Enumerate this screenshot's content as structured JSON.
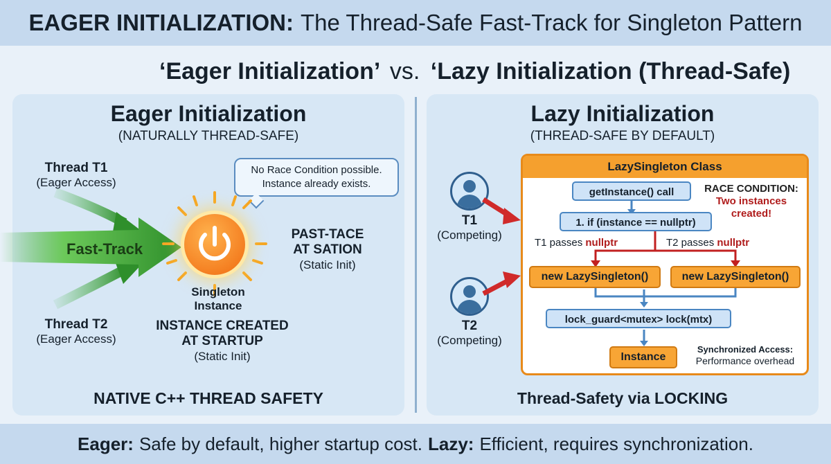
{
  "header": {
    "title_bold": "EAGER INITIALIZATION:",
    "title_rest": "The Thread-Safe Fast-Track for Singleton Pattern"
  },
  "subtitle": {
    "left": "‘Eager Initialization’",
    "vs": "vs.",
    "right": "‘Lazy Initialization (Thread-Safe)"
  },
  "left_panel": {
    "title": "Eager Initialization",
    "subtitle": "(NATURALLY THREAD-SAFE)",
    "thread1": {
      "name": "Thread T1",
      "note": "(Eager Access)"
    },
    "thread2": {
      "name": "Thread T2",
      "note": "(Eager Access)"
    },
    "fast_track": "Fast-Track",
    "bubble_line1": "No Race Condition possible.",
    "bubble_line2": "Instance already exists.",
    "singleton_line1": "Singleton",
    "singleton_line2": "Instance",
    "created_line1": "INSTANCE CREATED",
    "created_line2": "AT STARTUP",
    "created_note": "(Static Init)",
    "side_line1": "PAST-TACE",
    "side_line2": "AT SATION",
    "side_note": "(Static Init)",
    "footer": "NATIVE C++ THREAD SAFETY"
  },
  "right_panel": {
    "title": "Lazy Initialization",
    "subtitle": "(THREAD-SAFE BY DEFAULT)",
    "class_name": "LazySingleton Class",
    "get_instance": "getInstance() call",
    "if_check": "1. if (instance == nullptr)",
    "race_title": "RACE CONDITION:",
    "race_line1": "Two instances",
    "race_line2": "created!",
    "t1_passes": "T1 passes",
    "t2_passes": "T2 passes",
    "nullptr": "nullptr",
    "new_left": "new LazySingleton()",
    "new_right": "new LazySingleton()",
    "lock_guard": "lock_guard<mutex> lock(mtx)",
    "instance": "Instance",
    "sync_title": "Synchronized Access:",
    "sync_note": "Performance overhead",
    "t1": {
      "name": "T1",
      "note": "(Competing)"
    },
    "t2": {
      "name": "T2",
      "note": "(Competing)"
    },
    "footer": "Thread-Safety via LOCKING"
  },
  "footer": {
    "eager_label": "Eager:",
    "eager_text": "Safe by default, higher startup cost.",
    "lazy_label": "Lazy:",
    "lazy_text": "Efficient, requires synchronization."
  },
  "colors": {
    "accent_orange": "#f5a02e",
    "fast_green": "#3fae3a",
    "race_red": "#b01c1c",
    "flow_blue": "#4a86c2"
  }
}
